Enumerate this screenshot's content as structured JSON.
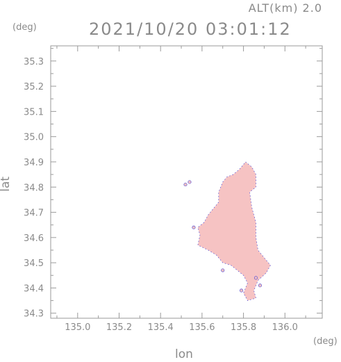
{
  "header": {
    "altitude_label": "ALT(km) 2.0",
    "timestamp": "2021/10/20 03:01:12"
  },
  "chart_data": {
    "type": "heatmap",
    "title": "2021/10/20 03:01:12",
    "subtitle": "ALT(km) 2.0",
    "xlabel": "lon",
    "ylabel": "lat",
    "x_unit": "(deg)",
    "y_unit": "(deg)",
    "xlim": [
      134.87,
      136.18
    ],
    "ylim": [
      34.28,
      35.36
    ],
    "x_ticks": [
      135.0,
      135.2,
      135.4,
      135.6,
      135.8,
      136.0
    ],
    "x_tick_labels": [
      "135.0",
      "135.2",
      "135.4",
      "135.6",
      "135.8",
      "136.0"
    ],
    "y_ticks": [
      34.3,
      34.4,
      34.5,
      34.6,
      34.7,
      34.8,
      34.9,
      35.0,
      35.1,
      35.2,
      35.3
    ],
    "y_tick_labels": [
      "34.3",
      "34.4",
      "34.5",
      "34.6",
      "34.7",
      "34.8",
      "34.9",
      "35.0",
      "35.1",
      "35.2",
      "35.3"
    ],
    "grid": false,
    "colors": {
      "fill": "#f6c3c3",
      "edge": "#5a55d6",
      "axis": "#9a9a9a",
      "text": "#8a8a8a"
    },
    "echo_region": [
      [
        135.81,
        34.9
      ],
      [
        135.84,
        34.88
      ],
      [
        135.86,
        34.85
      ],
      [
        135.86,
        34.8
      ],
      [
        135.83,
        34.78
      ],
      [
        135.84,
        34.72
      ],
      [
        135.86,
        34.66
      ],
      [
        135.86,
        34.6
      ],
      [
        135.87,
        34.55
      ],
      [
        135.9,
        34.52
      ],
      [
        135.93,
        34.49
      ],
      [
        135.91,
        34.46
      ],
      [
        135.87,
        34.43
      ],
      [
        135.85,
        34.39
      ],
      [
        135.86,
        34.36
      ],
      [
        135.82,
        34.35
      ],
      [
        135.8,
        34.38
      ],
      [
        135.82,
        34.42
      ],
      [
        135.8,
        34.45
      ],
      [
        135.77,
        34.47
      ],
      [
        135.74,
        34.49
      ],
      [
        135.7,
        34.5
      ],
      [
        135.67,
        34.53
      ],
      [
        135.63,
        34.55
      ],
      [
        135.58,
        34.57
      ],
      [
        135.59,
        34.61
      ],
      [
        135.58,
        34.64
      ],
      [
        135.61,
        34.66
      ],
      [
        135.63,
        34.69
      ],
      [
        135.66,
        34.72
      ],
      [
        135.68,
        34.74
      ],
      [
        135.68,
        34.78
      ],
      [
        135.7,
        34.82
      ],
      [
        135.72,
        34.84
      ],
      [
        135.75,
        34.85
      ],
      [
        135.78,
        34.87
      ]
    ],
    "small_echoes": [
      [
        135.52,
        34.81
      ],
      [
        135.54,
        34.82
      ],
      [
        135.56,
        34.64
      ],
      [
        135.7,
        34.47
      ],
      [
        135.86,
        34.44
      ],
      [
        135.88,
        34.41
      ],
      [
        135.79,
        34.39
      ]
    ]
  }
}
